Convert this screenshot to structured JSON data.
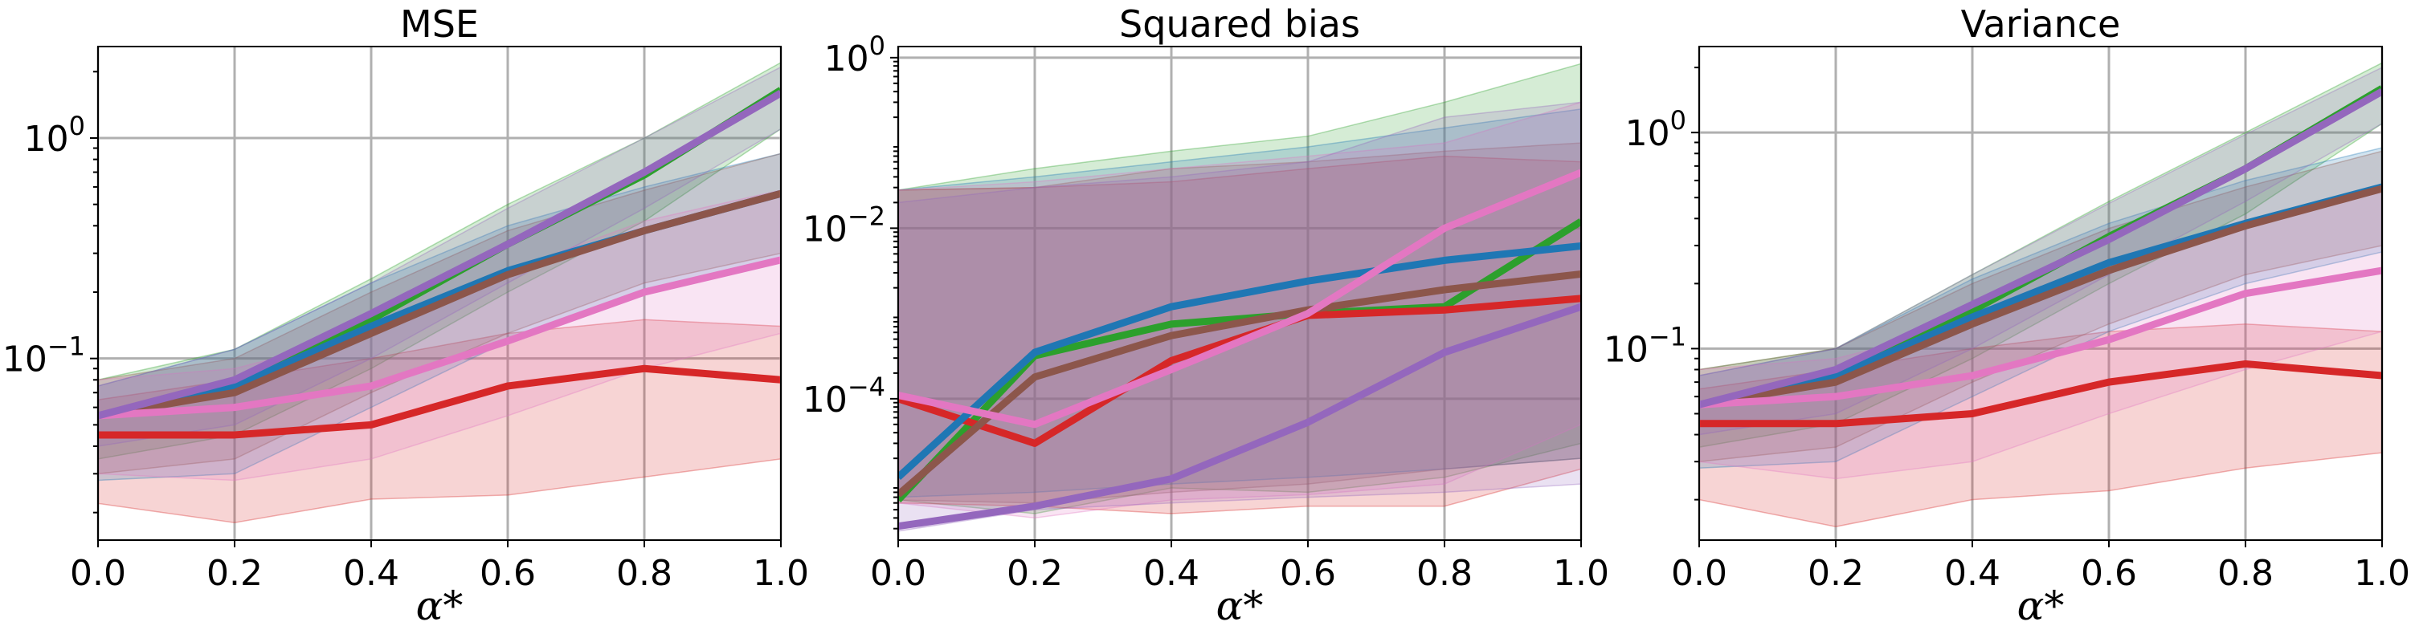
{
  "colors": {
    "blue": "#1f77b4",
    "red": "#d62728",
    "green": "#2ca02c",
    "brown": "#8c564b",
    "purple": "#9467bd",
    "pink": "#e377c2"
  },
  "chart_data": [
    {
      "type": "line",
      "title": "MSE",
      "xlabel": "α*",
      "ylabel": "",
      "yscale": "log",
      "xlim": [
        0.0,
        1.0
      ],
      "ylim": [
        0.015,
        2.6
      ],
      "xticks": [
        "0.0",
        "0.2",
        "0.4",
        "0.6",
        "0.8",
        "1.0"
      ],
      "yticks": [
        {
          "value": 1,
          "base": "10",
          "exp": "0"
        },
        {
          "value": 0.1,
          "base": "10",
          "exp": "−1"
        }
      ],
      "x": [
        0.0,
        0.2,
        0.4,
        0.6,
        0.8,
        1.0
      ],
      "series": [
        {
          "name": "green",
          "color": "#2ca02c",
          "values": [
            0.055,
            0.075,
            0.15,
            0.33,
            0.68,
            1.65
          ],
          "lower": [
            0.035,
            0.045,
            0.09,
            0.2,
            0.42,
            1.1
          ],
          "upper": [
            0.08,
            0.11,
            0.23,
            0.5,
            1.0,
            2.2
          ]
        },
        {
          "name": "red",
          "color": "#d62728",
          "values": [
            0.045,
            0.045,
            0.05,
            0.075,
            0.09,
            0.08
          ],
          "lower": [
            0.022,
            0.018,
            0.023,
            0.024,
            0.029,
            0.035
          ],
          "upper": [
            0.065,
            0.08,
            0.1,
            0.13,
            0.15,
            0.14
          ]
        },
        {
          "name": "blue",
          "color": "#1f77b4",
          "values": [
            0.055,
            0.075,
            0.14,
            0.25,
            0.38,
            0.56
          ],
          "lower": [
            0.028,
            0.03,
            0.06,
            0.12,
            0.2,
            0.28
          ],
          "upper": [
            0.075,
            0.11,
            0.22,
            0.4,
            0.6,
            0.85
          ]
        },
        {
          "name": "brown",
          "color": "#8c564b",
          "values": [
            0.055,
            0.07,
            0.13,
            0.24,
            0.38,
            0.56
          ],
          "lower": [
            0.03,
            0.035,
            0.07,
            0.13,
            0.22,
            0.3
          ],
          "upper": [
            0.08,
            0.1,
            0.2,
            0.38,
            0.58,
            0.85
          ]
        },
        {
          "name": "pink",
          "color": "#e377c2",
          "values": [
            0.055,
            0.06,
            0.075,
            0.12,
            0.2,
            0.28
          ],
          "lower": [
            0.03,
            0.028,
            0.035,
            0.055,
            0.09,
            0.13
          ],
          "upper": [
            0.08,
            0.09,
            0.13,
            0.25,
            0.42,
            0.58
          ]
        },
        {
          "name": "purple",
          "color": "#9467bd",
          "values": [
            0.055,
            0.08,
            0.16,
            0.33,
            0.7,
            1.6
          ],
          "lower": [
            0.04,
            0.05,
            0.1,
            0.22,
            0.48,
            1.1
          ],
          "upper": [
            0.075,
            0.11,
            0.22,
            0.48,
            1.0,
            2.1
          ]
        }
      ]
    },
    {
      "type": "line",
      "title": "Squared bias",
      "xlabel": "α*",
      "ylabel": "",
      "yscale": "log",
      "xlim": [
        0.0,
        1.0
      ],
      "ylim": [
        2.2e-06,
        1.35
      ],
      "xticks": [
        "0.0",
        "0.2",
        "0.4",
        "0.6",
        "0.8",
        "1.0"
      ],
      "yticks": [
        {
          "value": 1,
          "base": "10",
          "exp": "0"
        },
        {
          "value": 0.01,
          "base": "10",
          "exp": "−2"
        },
        {
          "value": 0.0001,
          "base": "10",
          "exp": "−4"
        }
      ],
      "x": [
        0.0,
        0.2,
        0.4,
        0.6,
        0.8,
        1.0
      ],
      "series": [
        {
          "name": "green",
          "color": "#2ca02c",
          "values": [
            6.5e-06,
            0.00032,
            0.00075,
            0.001,
            0.0012,
            0.012
          ],
          "lower": [
            6.5e-06,
            4.5e-06,
            9e-06,
            8e-06,
            1.2e-05,
            3e-05
          ],
          "upper": [
            0.028,
            0.05,
            0.08,
            0.12,
            0.3,
            0.85
          ]
        },
        {
          "name": "red",
          "color": "#d62728",
          "values": [
            0.0001,
            3e-05,
            0.00028,
            0.00095,
            0.0011,
            0.0015
          ],
          "lower": [
            6e-06,
            5.5e-06,
            4.5e-06,
            5.5e-06,
            5.5e-06,
            1.5e-05
          ],
          "upper": [
            0.028,
            0.03,
            0.035,
            0.05,
            0.07,
            0.06
          ]
        },
        {
          "name": "blue",
          "color": "#1f77b4",
          "values": [
            1.2e-05,
            0.00035,
            0.0012,
            0.0024,
            0.0042,
            0.0062
          ],
          "lower": [
            7e-06,
            8e-06,
            1e-05,
            1.2e-05,
            1.5e-05,
            2e-05
          ],
          "upper": [
            0.028,
            0.04,
            0.06,
            0.09,
            0.15,
            0.25
          ]
        },
        {
          "name": "brown",
          "color": "#8c564b",
          "values": [
            7.5e-06,
            0.00018,
            0.00055,
            0.0011,
            0.0019,
            0.0029
          ],
          "lower": [
            6.5e-06,
            6e-06,
            8e-06,
            1e-05,
            1.5e-05,
            2e-05
          ],
          "upper": [
            0.028,
            0.03,
            0.05,
            0.06,
            0.08,
            0.1
          ]
        },
        {
          "name": "pink",
          "color": "#e377c2",
          "values": [
            0.00011,
            5e-05,
            0.00022,
            0.001,
            0.01,
            0.045
          ],
          "lower": [
            6e-06,
            4e-06,
            6.5e-06,
            7.5e-06,
            1e-05,
            5e-05
          ],
          "upper": [
            0.028,
            0.035,
            0.05,
            0.07,
            0.1,
            0.3
          ]
        },
        {
          "name": "purple",
          "color": "#9467bd",
          "values": [
            3.2e-06,
            5.5e-06,
            1.15e-05,
            5.3e-05,
            0.00035,
            0.0012
          ],
          "lower": [
            2.8e-06,
            5e-06,
            6e-06,
            7e-06,
            8e-06,
            1e-05
          ],
          "upper": [
            0.02,
            0.03,
            0.04,
            0.06,
            0.2,
            0.3
          ]
        }
      ]
    },
    {
      "type": "line",
      "title": "Variance",
      "xlabel": "α*",
      "ylabel": "",
      "yscale": "log",
      "xlim": [
        0.0,
        1.0
      ],
      "ylim": [
        0.013,
        2.5
      ],
      "xticks": [
        "0.0",
        "0.2",
        "0.4",
        "0.6",
        "0.8",
        "1.0"
      ],
      "yticks": [
        {
          "value": 1,
          "base": "10",
          "exp": "0"
        },
        {
          "value": 0.1,
          "base": "10",
          "exp": "−1"
        }
      ],
      "x": [
        0.0,
        0.2,
        0.4,
        0.6,
        0.8,
        1.0
      ],
      "series": [
        {
          "name": "green",
          "color": "#2ca02c",
          "values": [
            0.055,
            0.075,
            0.15,
            0.33,
            0.68,
            1.6
          ],
          "lower": [
            0.035,
            0.045,
            0.09,
            0.2,
            0.42,
            1.1
          ],
          "upper": [
            0.08,
            0.1,
            0.22,
            0.48,
            1.0,
            2.1
          ]
        },
        {
          "name": "red",
          "color": "#d62728",
          "values": [
            0.045,
            0.045,
            0.05,
            0.07,
            0.085,
            0.075
          ],
          "lower": [
            0.02,
            0.015,
            0.02,
            0.022,
            0.028,
            0.033
          ],
          "upper": [
            0.065,
            0.08,
            0.1,
            0.12,
            0.13,
            0.12
          ]
        },
        {
          "name": "blue",
          "color": "#1f77b4",
          "values": [
            0.055,
            0.075,
            0.14,
            0.25,
            0.38,
            0.56
          ],
          "lower": [
            0.028,
            0.03,
            0.06,
            0.12,
            0.2,
            0.28
          ],
          "upper": [
            0.075,
            0.1,
            0.21,
            0.38,
            0.6,
            0.85
          ]
        },
        {
          "name": "brown",
          "color": "#8c564b",
          "values": [
            0.055,
            0.07,
            0.13,
            0.23,
            0.37,
            0.55
          ],
          "lower": [
            0.03,
            0.035,
            0.07,
            0.13,
            0.22,
            0.3
          ],
          "upper": [
            0.08,
            0.1,
            0.2,
            0.36,
            0.56,
            0.82
          ]
        },
        {
          "name": "pink",
          "color": "#e377c2",
          "values": [
            0.055,
            0.06,
            0.075,
            0.11,
            0.18,
            0.23
          ],
          "lower": [
            0.03,
            0.025,
            0.03,
            0.05,
            0.08,
            0.12
          ],
          "upper": [
            0.08,
            0.09,
            0.13,
            0.23,
            0.38,
            0.55
          ]
        },
        {
          "name": "purple",
          "color": "#9467bd",
          "values": [
            0.055,
            0.08,
            0.16,
            0.32,
            0.68,
            1.55
          ],
          "lower": [
            0.04,
            0.05,
            0.1,
            0.22,
            0.48,
            1.1
          ],
          "upper": [
            0.075,
            0.1,
            0.22,
            0.47,
            0.98,
            2.0
          ]
        }
      ]
    }
  ]
}
